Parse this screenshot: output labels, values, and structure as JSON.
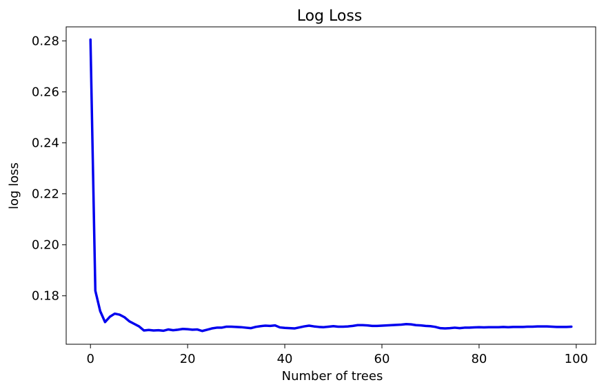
{
  "chart_data": {
    "type": "line",
    "title": "Log Loss",
    "xlabel": "Number of trees",
    "ylabel": "log loss",
    "xlim": [
      -5,
      104
    ],
    "ylim": [
      0.161,
      0.2855
    ],
    "xticks": [
      0,
      20,
      40,
      60,
      80,
      100
    ],
    "yticks": [
      0.18,
      0.2,
      0.22,
      0.24,
      0.26,
      0.28
    ],
    "xtick_labels": [
      "0",
      "20",
      "40",
      "60",
      "80",
      "100"
    ],
    "ytick_labels": [
      "0.18",
      "0.20",
      "0.22",
      "0.24",
      "0.26",
      "0.28"
    ],
    "grid": false,
    "legend": "none",
    "series": [
      {
        "color": "#0000ee",
        "x": [
          0,
          1,
          2,
          3,
          4,
          5,
          6,
          7,
          8,
          9,
          10,
          11,
          12,
          13,
          14,
          15,
          16,
          17,
          18,
          19,
          20,
          21,
          22,
          23,
          24,
          25,
          26,
          27,
          28,
          29,
          30,
          31,
          32,
          33,
          34,
          35,
          36,
          37,
          38,
          39,
          40,
          41,
          42,
          43,
          44,
          45,
          46,
          47,
          48,
          49,
          50,
          51,
          52,
          53,
          54,
          55,
          56,
          57,
          58,
          59,
          60,
          61,
          62,
          63,
          64,
          65,
          66,
          67,
          68,
          69,
          70,
          71,
          72,
          73,
          74,
          75,
          76,
          77,
          78,
          79,
          80,
          81,
          82,
          83,
          84,
          85,
          86,
          87,
          88,
          89,
          90,
          91,
          92,
          93,
          94,
          95,
          96,
          97,
          98,
          99
        ],
        "y": [
          0.2805,
          0.182,
          0.174,
          0.1697,
          0.1718,
          0.173,
          0.1726,
          0.1716,
          0.17,
          0.169,
          0.168,
          0.1664,
          0.1666,
          0.1664,
          0.1665,
          0.1663,
          0.1668,
          0.1665,
          0.1667,
          0.167,
          0.1669,
          0.1667,
          0.1668,
          0.1662,
          0.1667,
          0.1672,
          0.1675,
          0.1675,
          0.1679,
          0.1679,
          0.1678,
          0.1677,
          0.1675,
          0.1673,
          0.1678,
          0.1681,
          0.1683,
          0.1682,
          0.1684,
          0.1676,
          0.1674,
          0.1673,
          0.1672,
          0.1676,
          0.168,
          0.1683,
          0.168,
          0.1678,
          0.1677,
          0.1679,
          0.1681,
          0.1679,
          0.1679,
          0.168,
          0.1682,
          0.1685,
          0.1685,
          0.1684,
          0.1682,
          0.1682,
          0.1683,
          0.1684,
          0.1685,
          0.1686,
          0.1687,
          0.1689,
          0.1688,
          0.1685,
          0.1684,
          0.1682,
          0.1681,
          0.1678,
          0.1673,
          0.1672,
          0.1673,
          0.1675,
          0.1673,
          0.1675,
          0.1675,
          0.1676,
          0.1677,
          0.1676,
          0.1677,
          0.1677,
          0.1677,
          0.1678,
          0.1677,
          0.1678,
          0.1678,
          0.1678,
          0.1679,
          0.1679,
          0.168,
          0.168,
          0.168,
          0.1679,
          0.1678,
          0.1678,
          0.1678,
          0.1679
        ]
      }
    ]
  }
}
